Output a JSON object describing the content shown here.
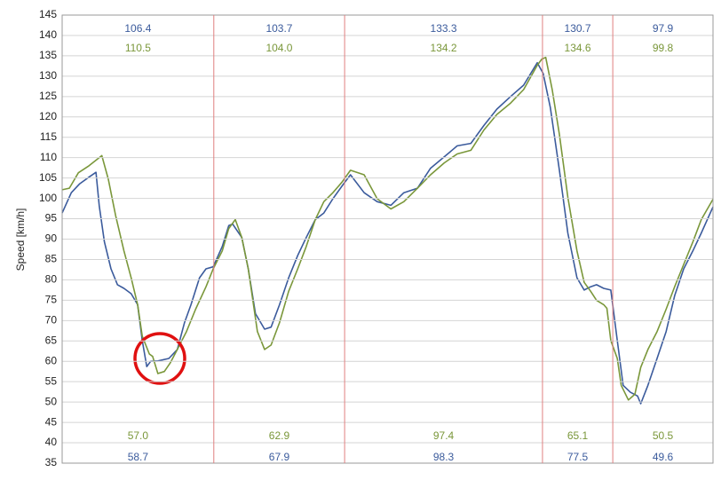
{
  "chart_data": {
    "type": "line",
    "ylabel": "Speed [km/h]",
    "xlim": [
      0,
      100
    ],
    "ylim": [
      35,
      145
    ],
    "yticks": [
      35,
      40,
      45,
      50,
      55,
      60,
      65,
      70,
      75,
      80,
      85,
      90,
      95,
      100,
      105,
      110,
      115,
      120,
      125,
      130,
      135,
      140,
      145
    ],
    "grid": true,
    "dividers": [
      23.3,
      43.4,
      73.8,
      84.6
    ],
    "divider_color": "#e08080",
    "series": [
      {
        "name": null,
        "color": "#3b5b9c",
        "x": [
          0,
          1.4,
          2.7,
          4.1,
          5.2,
          5.7,
          6.5,
          7.5,
          8.5,
          9.5,
          10.6,
          11.6,
          12.3,
          13.0,
          13.6,
          14.7,
          16.4,
          17.7,
          18.8,
          19.8,
          21.1,
          22.1,
          23.2,
          24.6,
          25.6,
          26.2,
          27.6,
          28.6,
          29.7,
          31.1,
          32.1,
          33.4,
          34.8,
          36.2,
          37.5,
          38.9,
          40.2,
          41.6,
          43.3,
          44.3,
          46.4,
          48.4,
          50.5,
          52.5,
          54.6,
          56.6,
          58.7,
          60.7,
          62.8,
          64.8,
          66.8,
          68.9,
          70.9,
          73.0,
          73.9,
          75.0,
          76.4,
          77.7,
          79.1,
          80.2,
          81.2,
          82.1,
          83.2,
          84.3,
          85.3,
          86.2,
          87.3,
          88.4,
          88.9,
          90.0,
          91.4,
          92.8,
          94.1,
          95.5,
          96.9,
          98.2,
          100
        ],
        "values": [
          96.4,
          101.4,
          103.6,
          105.2,
          106.4,
          98.1,
          89.3,
          82.7,
          78.8,
          77.9,
          76.6,
          73.9,
          65.1,
          58.7,
          60.0,
          60.1,
          60.7,
          62.9,
          69.5,
          73.9,
          80.5,
          82.7,
          83.2,
          88.2,
          93.3,
          93.7,
          90.4,
          82.7,
          71.7,
          67.9,
          68.4,
          73.9,
          80.5,
          86.0,
          90.4,
          94.8,
          96.4,
          99.9,
          103.7,
          105.8,
          101.4,
          99.2,
          98.3,
          101.4,
          102.5,
          107.4,
          110.2,
          112.9,
          113.5,
          117.9,
          121.9,
          125.0,
          127.8,
          133.3,
          130.7,
          122.3,
          106.9,
          91.5,
          80.5,
          77.5,
          78.3,
          78.8,
          77.9,
          77.5,
          65.1,
          54.1,
          52.4,
          51.5,
          49.6,
          54.1,
          60.7,
          67.3,
          76.1,
          82.7,
          87.1,
          91.5,
          97.9
        ],
        "section_max": [
          106.4,
          103.7,
          133.3,
          130.7,
          97.9
        ],
        "section_max_labels": [
          "106.4",
          "103.7",
          "133.3",
          "130.7",
          "97.9"
        ],
        "section_min": [
          58.7,
          67.9,
          98.3,
          77.5,
          49.6
        ],
        "section_min_labels": [
          "58.7",
          "67.9",
          "98.3",
          "77.5",
          "49.6"
        ]
      },
      {
        "name": null,
        "color": "#7a973a",
        "x": [
          0,
          1.1,
          2.5,
          4.1,
          6.1,
          7.1,
          8.2,
          9.5,
          10.6,
          11.6,
          12.3,
          13.4,
          13.9,
          14.7,
          15.7,
          16.6,
          17.7,
          19.1,
          20.5,
          22.1,
          23.2,
          24.6,
          25.6,
          26.6,
          27.6,
          28.6,
          30.0,
          31.1,
          32.1,
          33.4,
          34.8,
          36.2,
          37.5,
          38.9,
          40.2,
          41.6,
          43.0,
          44.3,
          46.4,
          48.4,
          50.5,
          52.5,
          54.6,
          56.6,
          58.7,
          60.7,
          62.8,
          64.8,
          66.8,
          68.9,
          70.9,
          73.0,
          73.7,
          74.3,
          75.3,
          76.4,
          77.7,
          79.1,
          80.2,
          81.2,
          82.1,
          83.2,
          83.7,
          84.3,
          85.3,
          85.9,
          87.0,
          88.0,
          88.9,
          90.0,
          91.4,
          92.8,
          94.1,
          95.5,
          96.9,
          98.2,
          100
        ],
        "values": [
          102.1,
          102.5,
          106.3,
          108.0,
          110.5,
          104.7,
          95.9,
          87.1,
          80.5,
          73.9,
          66.2,
          61.8,
          61.2,
          57.0,
          57.5,
          59.6,
          62.9,
          67.3,
          72.8,
          78.3,
          82.7,
          87.1,
          92.6,
          94.8,
          90.4,
          82.7,
          67.3,
          62.9,
          64.0,
          69.5,
          77.2,
          82.7,
          88.2,
          94.8,
          99.2,
          101.4,
          104.0,
          106.9,
          105.8,
          99.9,
          97.4,
          99.2,
          102.5,
          105.8,
          108.7,
          110.9,
          111.8,
          116.8,
          120.6,
          123.4,
          126.7,
          132.7,
          134.2,
          134.6,
          126.7,
          115.7,
          100.3,
          87.1,
          79.4,
          77.2,
          75.0,
          73.9,
          73.0,
          65.1,
          60.7,
          54.1,
          50.5,
          51.9,
          58.5,
          62.9,
          67.3,
          72.8,
          78.3,
          83.8,
          89.3,
          94.8,
          99.8
        ],
        "section_max": [
          110.5,
          104.0,
          134.2,
          134.6,
          99.8
        ],
        "section_max_labels": [
          "110.5",
          "104.0",
          "134.2",
          "134.6",
          "99.8"
        ],
        "section_min": [
          57.0,
          62.9,
          97.4,
          65.1,
          50.5
        ],
        "section_min_labels": [
          "57.0",
          "62.9",
          "97.4",
          "65.1",
          "50.5"
        ]
      }
    ]
  }
}
